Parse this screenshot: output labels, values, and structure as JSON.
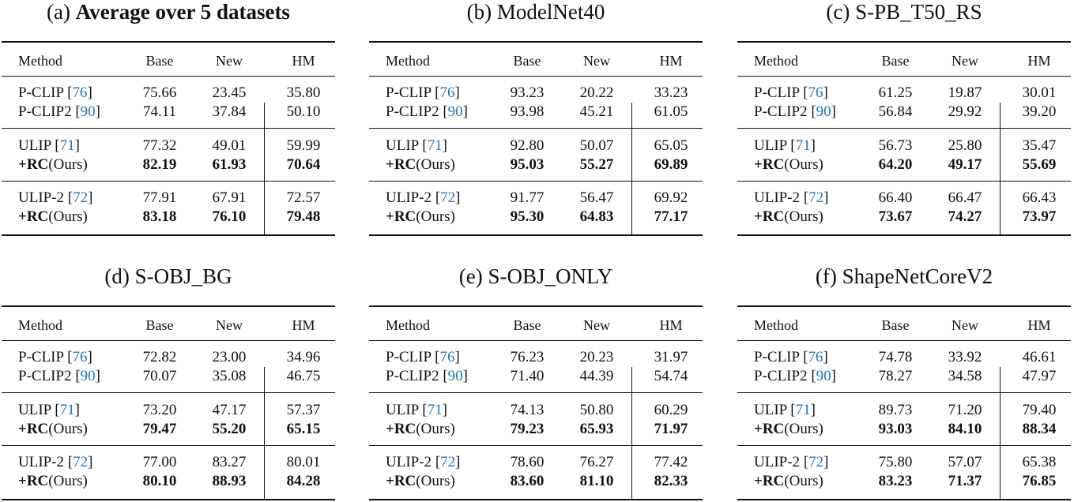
{
  "headers": {
    "method": "Method",
    "base": "Base",
    "new": "New",
    "hm": "HM"
  },
  "panels": [
    {
      "caption_label": "(a)",
      "caption_title": "Average over 5 datasets",
      "caption_bold": true,
      "rows": [
        {
          "name": "P-CLIP",
          "ref": "76",
          "base": "75.66",
          "new": "23.45",
          "hm": "35.80"
        },
        {
          "name": "P-CLIP2",
          "ref": "90",
          "base": "74.11",
          "new": "37.84",
          "hm": "50.10"
        },
        {
          "name": "ULIP",
          "ref": "71",
          "base": "77.32",
          "new": "49.01",
          "hm": "59.99"
        },
        {
          "name": "RC",
          "suffix": "(Ours)",
          "ours": true,
          "base": "82.19",
          "new": "61.93",
          "hm": "70.64"
        },
        {
          "name": "ULIP-2",
          "ref": "72",
          "base": "77.91",
          "new": "67.91",
          "hm": "72.57"
        },
        {
          "name": "RC",
          "suffix": "(Ours)",
          "ours": true,
          "base": "83.18",
          "new": "76.10",
          "hm": "79.48"
        }
      ]
    },
    {
      "caption_label": "(b)",
      "caption_title": "ModelNet40",
      "caption_bold": false,
      "rows": [
        {
          "name": "P-CLIP",
          "ref": "76",
          "base": "93.23",
          "new": "20.22",
          "hm": "33.23"
        },
        {
          "name": "P-CLIP2",
          "ref": "90",
          "base": "93.98",
          "new": "45.21",
          "hm": "61.05"
        },
        {
          "name": "ULIP",
          "ref": "71",
          "base": "92.80",
          "new": "50.07",
          "hm": "65.05"
        },
        {
          "name": "RC",
          "suffix": "(Ours)",
          "ours": true,
          "base": "95.03",
          "new": "55.27",
          "hm": "69.89"
        },
        {
          "name": "ULIP-2",
          "ref": "72",
          "base": "91.77",
          "new": "56.47",
          "hm": "69.92"
        },
        {
          "name": "RC",
          "suffix": "(Ours)",
          "ours": true,
          "base": "95.30",
          "new": "64.83",
          "hm": "77.17"
        }
      ]
    },
    {
      "caption_label": "(c)",
      "caption_title": "S-PB_T50_RS",
      "caption_bold": false,
      "rows": [
        {
          "name": "P-CLIP",
          "ref": "76",
          "base": "61.25",
          "new": "19.87",
          "hm": "30.01"
        },
        {
          "name": "P-CLIP2",
          "ref": "90",
          "base": "56.84",
          "new": "29.92",
          "hm": "39.20"
        },
        {
          "name": "ULIP",
          "ref": "71",
          "base": "56.73",
          "new": "25.80",
          "hm": "35.47"
        },
        {
          "name": "RC",
          "suffix": "(Ours)",
          "ours": true,
          "base": "64.20",
          "new": "49.17",
          "hm": "55.69"
        },
        {
          "name": "ULIP-2",
          "ref": "72",
          "base": "66.40",
          "new": "66.47",
          "hm": "66.43"
        },
        {
          "name": "RC",
          "suffix": "(Ours)",
          "ours": true,
          "base": "73.67",
          "new": "74.27",
          "hm": "73.97"
        }
      ]
    },
    {
      "caption_label": "(d)",
      "caption_title": "S-OBJ_BG",
      "caption_bold": false,
      "rows": [
        {
          "name": "P-CLIP",
          "ref": "76",
          "base": "72.82",
          "new": "23.00",
          "hm": "34.96"
        },
        {
          "name": "P-CLIP2",
          "ref": "90",
          "base": "70.07",
          "new": "35.08",
          "hm": "46.75"
        },
        {
          "name": "ULIP",
          "ref": "71",
          "base": "73.20",
          "new": "47.17",
          "hm": "57.37"
        },
        {
          "name": "RC",
          "suffix": "(Ours)",
          "ours": true,
          "base": "79.47",
          "new": "55.20",
          "hm": "65.15"
        },
        {
          "name": "ULIP-2",
          "ref": "72",
          "base": "77.00",
          "new": "83.27",
          "hm": "80.01"
        },
        {
          "name": "RC",
          "suffix": "(Ours)",
          "ours": true,
          "base": "80.10",
          "new": "88.93",
          "hm": "84.28"
        }
      ]
    },
    {
      "caption_label": "(e)",
      "caption_title": "S-OBJ_ONLY",
      "caption_bold": false,
      "rows": [
        {
          "name": "P-CLIP",
          "ref": "76",
          "base": "76.23",
          "new": "20.23",
          "hm": "31.97"
        },
        {
          "name": "P-CLIP2",
          "ref": "90",
          "base": "71.40",
          "new": "44.39",
          "hm": "54.74"
        },
        {
          "name": "ULIP",
          "ref": "71",
          "base": "74.13",
          "new": "50.80",
          "hm": "60.29"
        },
        {
          "name": "RC",
          "suffix": "(Ours)",
          "ours": true,
          "base": "79.23",
          "new": "65.93",
          "hm": "71.97"
        },
        {
          "name": "ULIP-2",
          "ref": "72",
          "base": "78.60",
          "new": "76.27",
          "hm": "77.42"
        },
        {
          "name": "RC",
          "suffix": "(Ours)",
          "ours": true,
          "base": "83.60",
          "new": "81.10",
          "hm": "82.33"
        }
      ]
    },
    {
      "caption_label": "(f)",
      "caption_title": "ShapeNetCoreV2",
      "caption_bold": false,
      "rows": [
        {
          "name": "P-CLIP",
          "ref": "76",
          "base": "74.78",
          "new": "33.92",
          "hm": "46.61"
        },
        {
          "name": "P-CLIP2",
          "ref": "90",
          "base": "78.27",
          "new": "34.58",
          "hm": "47.97"
        },
        {
          "name": "ULIP",
          "ref": "71",
          "base": "89.73",
          "new": "71.20",
          "hm": "79.40"
        },
        {
          "name": "RC",
          "suffix": "(Ours)",
          "ours": true,
          "base": "93.03",
          "new": "84.10",
          "hm": "88.34"
        },
        {
          "name": "ULIP-2",
          "ref": "72",
          "base": "75.80",
          "new": "57.07",
          "hm": "65.38"
        },
        {
          "name": "RC",
          "suffix": "(Ours)",
          "ours": true,
          "base": "83.23",
          "new": "71.37",
          "hm": "76.85"
        }
      ]
    }
  ]
}
